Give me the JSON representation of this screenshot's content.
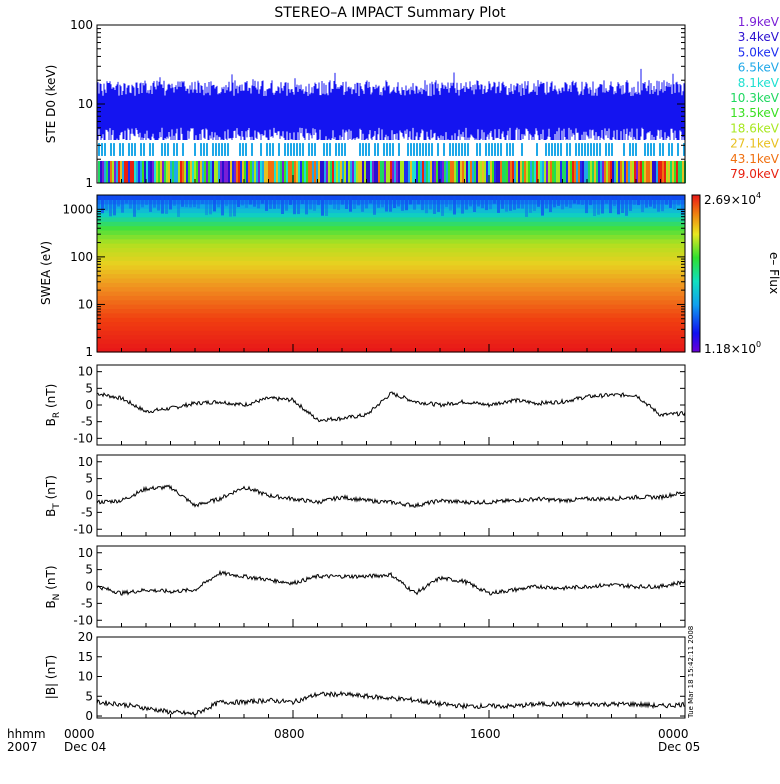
{
  "title": "STEREO–A IMPACT Summary Plot",
  "time_axis": {
    "row1_labels": [
      "0000",
      "0800",
      "1600",
      "0000"
    ],
    "row2_labels": [
      "Dec 04",
      "",
      "",
      "Dec 05"
    ],
    "corner_top": "hhmm",
    "corner_bottom": "2007"
  },
  "timestamp": "Tue Mar 18 15:42:11 2008",
  "colors": {
    "energy_channels": [
      "#7a1fd6",
      "#2a0fd0",
      "#1f2ff0",
      "#1fa8e8",
      "#1fe0d0",
      "#1fd860",
      "#3ae020",
      "#a8e820",
      "#e8c020",
      "#f07010",
      "#e82010"
    ],
    "trace": "#000000"
  },
  "chart_data": [
    {
      "type": "line",
      "panel": "ste",
      "ylabel": "STE D0 (keV)",
      "yscale": "log",
      "ylim": [
        1,
        100
      ],
      "yticks": [
        "1",
        "10",
        "100"
      ],
      "legend": [
        "1.9keV",
        "3.4keV",
        "5.0keV",
        "6.5keV",
        "8.1keV",
        "10.3keV",
        "13.5keV",
        "18.6keV",
        "27.1keV",
        "43.1keV",
        "79.0keV"
      ],
      "legend_placement": "right"
    },
    {
      "type": "heatmap",
      "panel": "swea",
      "ylabel": "SWEA (eV)",
      "yscale": "log",
      "ylim": [
        1,
        2000
      ],
      "yticks": [
        "1",
        "10",
        "100",
        "1000"
      ],
      "colorbar": {
        "label": "e– Flux",
        "max": "2.69×10",
        "max_exp": "4",
        "min": "1.18×10",
        "min_exp": "0"
      }
    },
    {
      "type": "line",
      "panel": "br",
      "ylabel": "B",
      "ylabel_sub": "R",
      "ylabel_unit": " (nT)",
      "ylim": [
        -12,
        12
      ],
      "yticks": [
        10,
        5,
        0,
        -5,
        -10
      ],
      "x_hours": [
        0,
        1,
        2,
        3,
        4,
        5,
        6,
        7,
        8,
        9,
        10,
        11,
        12,
        13,
        14,
        15,
        16,
        17,
        18,
        19,
        20,
        21,
        22,
        23,
        24
      ],
      "values": [
        3.5,
        2,
        -2,
        -1,
        0.5,
        1,
        0,
        2,
        1.5,
        -4.5,
        -4,
        -3,
        3.5,
        1,
        0,
        1,
        0,
        1.5,
        0.5,
        1,
        2.5,
        3,
        3,
        -3,
        -2.5
      ]
    },
    {
      "type": "line",
      "panel": "bt",
      "ylabel": "B",
      "ylabel_sub": "T",
      "ylabel_unit": " (nT)",
      "ylim": [
        -12,
        12
      ],
      "yticks": [
        10,
        5,
        0,
        -5,
        -10
      ],
      "x_hours": [
        0,
        1,
        2,
        3,
        4,
        5,
        6,
        7,
        8,
        9,
        10,
        11,
        12,
        13,
        14,
        15,
        16,
        17,
        18,
        19,
        20,
        21,
        22,
        23,
        24
      ],
      "values": [
        -2,
        -1.5,
        2,
        2.5,
        -3,
        -1,
        2.5,
        0,
        -1,
        -2,
        -0.5,
        -1.5,
        -2,
        -3,
        -1.5,
        -2,
        -2,
        -1.5,
        -1,
        -1.5,
        -1,
        -1,
        -0.5,
        -0.5,
        1
      ]
    },
    {
      "type": "line",
      "panel": "bn",
      "ylabel": "B",
      "ylabel_sub": "N",
      "ylabel_unit": " (nT)",
      "ylim": [
        -12,
        12
      ],
      "yticks": [
        10,
        5,
        0,
        -5,
        -10
      ],
      "x_hours": [
        0,
        1,
        2,
        3,
        4,
        5,
        6,
        7,
        8,
        9,
        10,
        11,
        12,
        13,
        14,
        15,
        16,
        17,
        18,
        19,
        20,
        21,
        22,
        23,
        24
      ],
      "values": [
        0,
        -2,
        -1,
        -1.5,
        -1,
        4,
        3,
        2,
        1,
        3,
        3,
        3,
        3.5,
        -2,
        2.5,
        1.5,
        -2,
        -1,
        0,
        -0.5,
        0,
        0.5,
        0,
        0,
        1.5
      ]
    },
    {
      "type": "line",
      "panel": "bmag",
      "ylabel": "|B| (nT)",
      "ylim": [
        -0.5,
        20
      ],
      "yticks": [
        20,
        15,
        10,
        5,
        0
      ],
      "x_hours": [
        0,
        1,
        2,
        3,
        4,
        5,
        6,
        7,
        8,
        9,
        10,
        11,
        12,
        13,
        14,
        15,
        16,
        17,
        18,
        19,
        20,
        21,
        22,
        23,
        24
      ],
      "values": [
        3.5,
        3,
        2,
        1,
        0.5,
        3.5,
        3.5,
        4,
        3.5,
        5.5,
        5.5,
        5,
        4.5,
        4,
        3,
        2.5,
        2.5,
        2.5,
        3,
        3,
        3,
        3,
        3,
        2.5,
        3
      ]
    }
  ]
}
